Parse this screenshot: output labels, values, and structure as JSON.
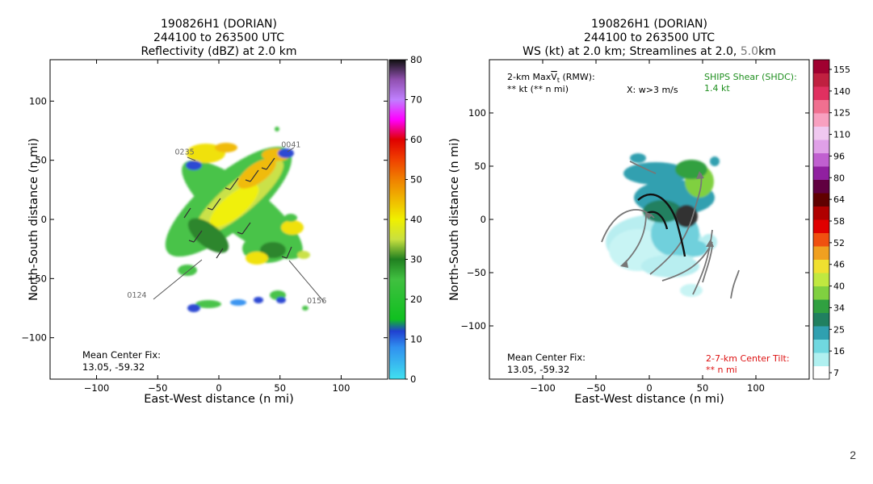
{
  "page": {
    "number": "2"
  },
  "colors": {
    "axis": "#000000",
    "gray_label": "#666666",
    "shear_green": "#1f8f1f",
    "tilt_red": "#dd1111"
  },
  "chart_data": [
    {
      "type": "heatmap",
      "title_line1": "190826H1 (DORIAN)",
      "title_line2": "244100 to 263500 UTC",
      "title_line3": "Reflectivity (dBZ) at 2.0 km",
      "xlabel": "East-West distance (n mi)",
      "ylabel": "North-South distance (n mi)",
      "xlim": [
        -138,
        138
      ],
      "ylim": [
        -135,
        135
      ],
      "xticks": [
        -100,
        -50,
        0,
        50,
        100
      ],
      "yticks": [
        -100,
        -50,
        0,
        50,
        100
      ],
      "xtick_labels": [
        "−100",
        "−50",
        "0",
        "50",
        "100"
      ],
      "ytick_labels": [
        "−100",
        "−50",
        "0",
        "50",
        "100"
      ],
      "colorbar": {
        "min": 0,
        "max": 80,
        "ticks": [
          0,
          10,
          20,
          30,
          40,
          50,
          60,
          70,
          80
        ],
        "tick_labels": [
          "0",
          "10",
          "20",
          "30",
          "40",
          "50",
          "60",
          "70",
          "80"
        ],
        "stops": [
          {
            "v": 0,
            "c": "#40e0f0"
          },
          {
            "v": 8,
            "c": "#3090f0"
          },
          {
            "v": 12,
            "c": "#2040d0"
          },
          {
            "v": 15,
            "c": "#10c020"
          },
          {
            "v": 25,
            "c": "#40c040"
          },
          {
            "v": 30,
            "c": "#208020"
          },
          {
            "v": 35,
            "c": "#c8e040"
          },
          {
            "v": 40,
            "c": "#f0f000"
          },
          {
            "v": 45,
            "c": "#f0b800"
          },
          {
            "v": 50,
            "c": "#f08000"
          },
          {
            "v": 55,
            "c": "#f04000"
          },
          {
            "v": 60,
            "c": "#e00000"
          },
          {
            "v": 65,
            "c": "#ff00ff"
          },
          {
            "v": 70,
            "c": "#c080ff"
          },
          {
            "v": 75,
            "c": "#9050b0"
          },
          {
            "v": 80,
            "c": "#101010"
          }
        ]
      },
      "track_points": [
        {
          "label": "0235",
          "x": -28,
          "y": 55
        },
        {
          "label": "0041",
          "x": 59,
          "y": 61
        },
        {
          "label": "0124",
          "x": -67,
          "y": -66
        },
        {
          "label": "0156",
          "x": 80,
          "y": -71
        }
      ],
      "annotation_label": "Mean Center Fix:",
      "annotation_value": "13.05, -59.32"
    },
    {
      "type": "heatmap",
      "title_line1": "190826H1 (DORIAN)",
      "title_line2": "244100 to 263500 UTC",
      "title_line3_main": "WS (kt) at 2.0 km; Streamlines at 2.0, ",
      "title_line3_gray": "5.0",
      "title_line3_end": "km",
      "xlabel": "East-West distance (n mi)",
      "ylabel": "North-South distance (n mi)",
      "xlim": [
        -150,
        150
      ],
      "ylim": [
        -150,
        150
      ],
      "xticks": [
        -100,
        -50,
        0,
        50,
        100
      ],
      "yticks": [
        -100,
        -50,
        0,
        50,
        100
      ],
      "xtick_labels": [
        "−100",
        "−50",
        "0",
        "50",
        "100"
      ],
      "ytick_labels": [
        "−100",
        "−50",
        "0",
        "50",
        "100"
      ],
      "colorbar": {
        "ticks": [
          "7",
          "16",
          "25",
          "34",
          "40",
          "46",
          "52",
          "58",
          "64",
          "80",
          "96",
          "110",
          "125",
          "140",
          "155"
        ],
        "colors": [
          "#ffffff",
          "#b0f0f0",
          "#70d8e0",
          "#30a0b0",
          "#208060",
          "#30a040",
          "#80d040",
          "#c0e840",
          "#f0e030",
          "#f0a020",
          "#f05010",
          "#e00000",
          "#b00000",
          "#600000",
          "#600040",
          "#9020a0",
          "#c060d0",
          "#e0a0e8",
          "#f0c8f0",
          "#f8a0c0",
          "#f07090",
          "#e03060",
          "#c02040",
          "#a00030"
        ]
      },
      "rmw_label": "2-km Max",
      "rmw_symbol": "V",
      "rmw_sub": "t",
      "rmw_suffix": " (RMW):",
      "rmw_value": "** kt (** n mi)",
      "w_label": "X: w>3 m/s",
      "shear_label": "SHIPS Shear (SHDC):",
      "shear_value": "1.4 kt",
      "annotation_label": "Mean Center Fix:",
      "annotation_value": "13.05, -59.32",
      "tilt_label": "2-7-km Center Tilt:",
      "tilt_value": "** n mi"
    }
  ]
}
